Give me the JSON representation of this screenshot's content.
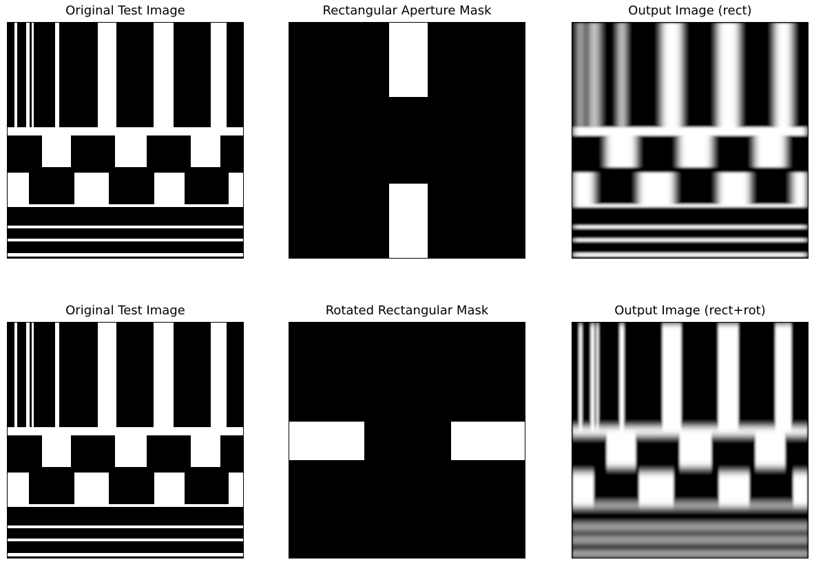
{
  "panels": [
    {
      "title": "Original Test Image",
      "image": "test-pattern",
      "blur": "none"
    },
    {
      "title": "Rectangular Aperture Mask",
      "image": "rect-aperture-mask",
      "blur": "none"
    },
    {
      "title": "Output Image (rect)",
      "image": "test-pattern",
      "blur": "horizontal"
    },
    {
      "title": "Original Test Image",
      "image": "test-pattern",
      "blur": "none"
    },
    {
      "title": "Rotated Rectangular Mask",
      "image": "rotated-rect-mask",
      "blur": "none"
    },
    {
      "title": "Output Image (rect+rot)",
      "image": "test-pattern",
      "blur": "vertical"
    }
  ],
  "colors": {
    "background": "#ffffff",
    "foreground": "#000000",
    "highlight": "#ffffff"
  }
}
